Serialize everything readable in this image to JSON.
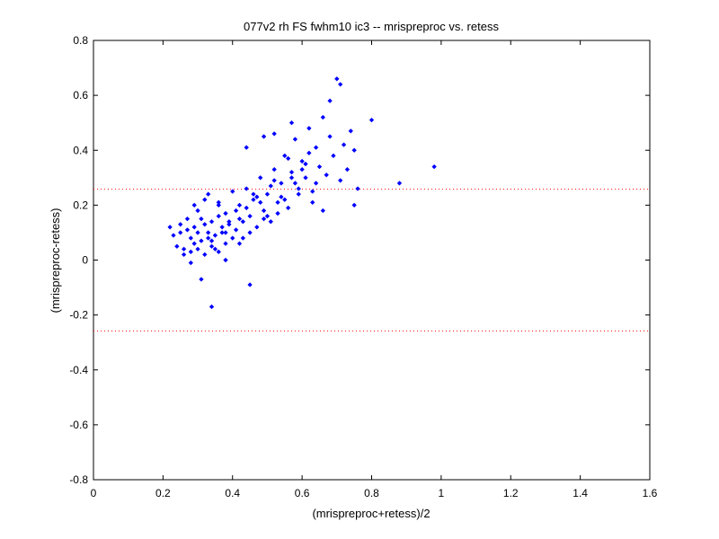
{
  "chart_data": {
    "type": "scatter",
    "title": "077v2 rh FS fwhm10 ic3 -- mrispreproc vs. retess",
    "xlabel": "(mrispreproc+retess)/2",
    "ylabel": "(mrispreproc-retess)",
    "xlim": [
      0,
      1.6
    ],
    "ylim": [
      -0.8,
      0.8
    ],
    "xticks": [
      "0",
      "0.2",
      "0.4",
      "0.6",
      "0.8",
      "1",
      "1.2",
      "1.4",
      "1.6"
    ],
    "yticks": [
      "0.8",
      "0.6",
      "0.4",
      "0.2",
      "0",
      "-0.2",
      "-0.4",
      "-0.6",
      "-0.8"
    ],
    "grid": false,
    "marker_color": "#0000ff",
    "reference_line_color": "#ff0000",
    "reference_lines_y": [
      0.258,
      -0.258
    ],
    "x": [
      0.22,
      0.24,
      0.25,
      0.26,
      0.27,
      0.28,
      0.28,
      0.29,
      0.3,
      0.3,
      0.31,
      0.32,
      0.32,
      0.33,
      0.34,
      0.34,
      0.35,
      0.36,
      0.36,
      0.37,
      0.38,
      0.38,
      0.39,
      0.4,
      0.41,
      0.42,
      0.43,
      0.44,
      0.45,
      0.46,
      0.47,
      0.48,
      0.49,
      0.5,
      0.51,
      0.52,
      0.53,
      0.54,
      0.55,
      0.56,
      0.57,
      0.58,
      0.59,
      0.6,
      0.61,
      0.62,
      0.63,
      0.64,
      0.65,
      0.66,
      0.67,
      0.68,
      0.69,
      0.7,
      0.71,
      0.72,
      0.73,
      0.74,
      0.75,
      0.76,
      0.23,
      0.25,
      0.27,
      0.29,
      0.31,
      0.33,
      0.35,
      0.37,
      0.39,
      0.41,
      0.43,
      0.45,
      0.47,
      0.49,
      0.51,
      0.53,
      0.55,
      0.57,
      0.59,
      0.61,
      0.26,
      0.28,
      0.3,
      0.32,
      0.34,
      0.36,
      0.38,
      0.4,
      0.42,
      0.44,
      0.46,
      0.48,
      0.5,
      0.52,
      0.54,
      0.56,
      0.58,
      0.6,
      0.62,
      0.64,
      0.8,
      0.88,
      0.98,
      0.34,
      0.31,
      0.45,
      0.38,
      0.42,
      0.29,
      0.52,
      0.63,
      0.68,
      0.71,
      0.66,
      0.75,
      0.57,
      0.49,
      0.44,
      0.36,
      0.33
    ],
    "y": [
      0.12,
      0.05,
      0.1,
      0.02,
      0.15,
      0.08,
      -0.01,
      0.12,
      0.04,
      0.18,
      0.07,
      0.02,
      0.22,
      0.1,
      0.05,
      0.14,
      0.09,
      0.2,
      0.03,
      0.12,
      0.17,
      0.06,
      0.14,
      0.25,
      0.11,
      0.2,
      0.08,
      0.26,
      0.16,
      0.22,
      0.12,
      0.3,
      0.18,
      0.24,
      0.14,
      0.33,
      0.21,
      0.28,
      0.38,
      0.19,
      0.32,
      0.44,
      0.26,
      0.36,
      0.3,
      0.48,
      0.25,
      0.41,
      0.34,
      0.52,
      0.31,
      0.45,
      0.38,
      0.66,
      0.29,
      0.42,
      0.33,
      0.47,
      0.4,
      0.26,
      0.09,
      0.13,
      0.11,
      0.06,
      0.15,
      0.08,
      0.04,
      0.1,
      0.13,
      0.18,
      0.14,
      0.1,
      0.23,
      0.15,
      0.27,
      0.17,
      0.22,
      0.3,
      0.24,
      0.35,
      0.04,
      0.03,
      0.1,
      0.13,
      0.07,
      0.16,
      0.1,
      0.08,
      0.15,
      0.19,
      0.24,
      0.21,
      0.16,
      0.29,
      0.23,
      0.37,
      0.28,
      0.33,
      0.39,
      0.28,
      0.51,
      0.28,
      0.34,
      -0.17,
      -0.07,
      -0.09,
      0.0,
      0.06,
      0.2,
      0.46,
      0.21,
      0.58,
      0.64,
      0.18,
      0.2,
      0.5,
      0.45,
      0.41,
      0.21,
      0.24
    ]
  }
}
